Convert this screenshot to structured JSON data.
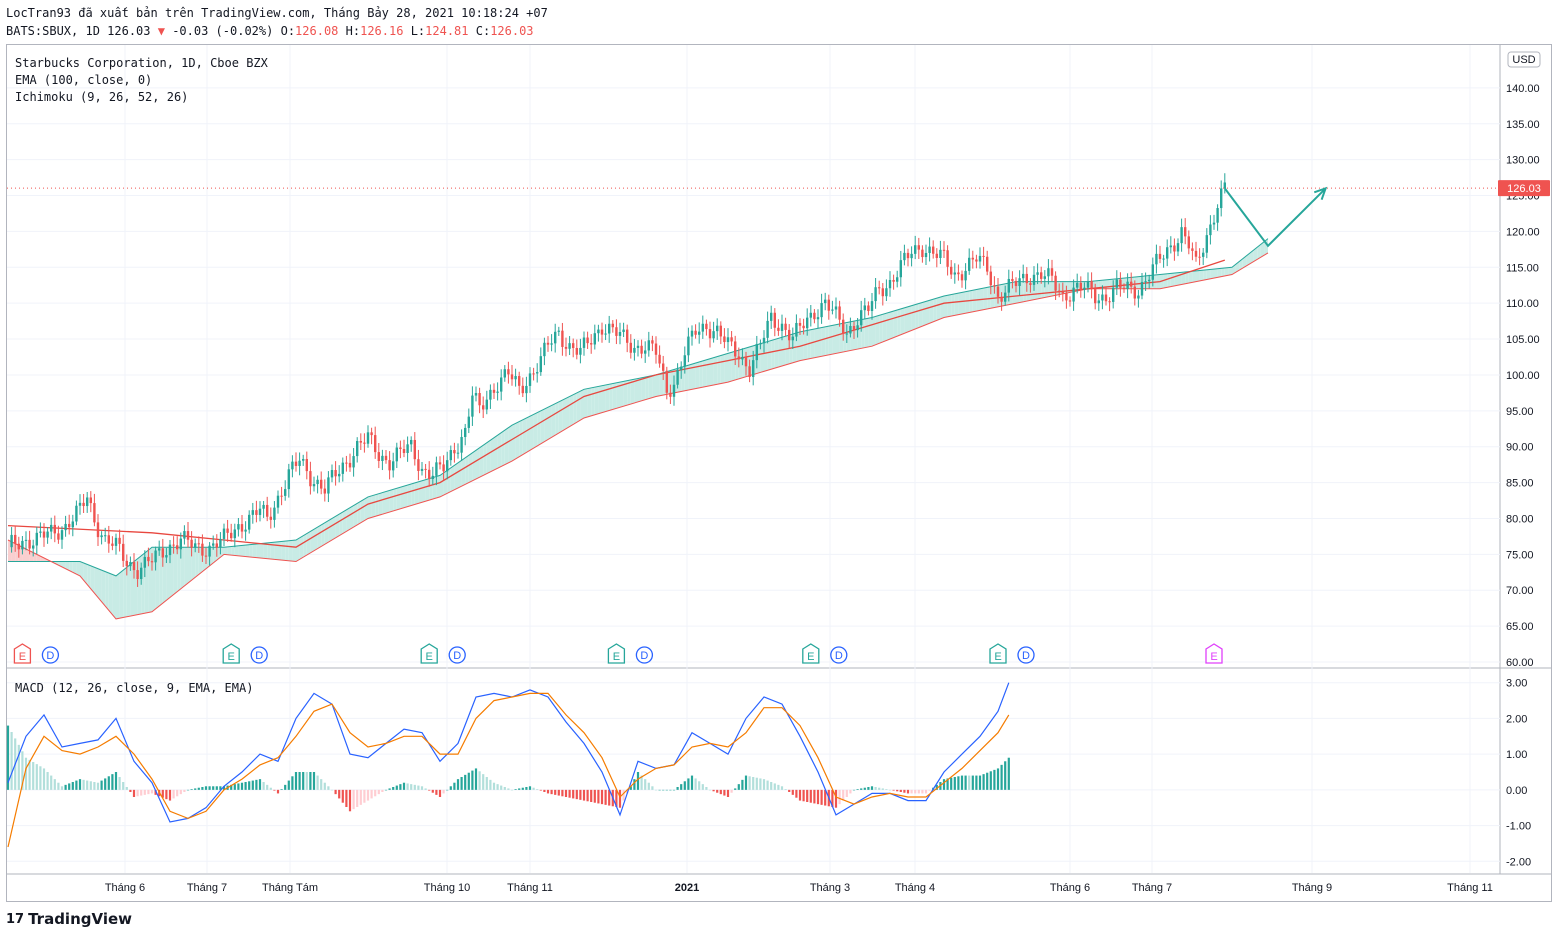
{
  "header": {
    "line1": "LocTran93 đã xuất bản trên TradingView.com, Tháng Bảy 28, 2021 10:18:24 +07",
    "symbol_info": "BATS:SBUX, 1D 126.03",
    "change": "-0.03 (-0.02%)",
    "o_label": "O:",
    "o_value": "126.08",
    "h_label": "H:",
    "h_value": "126.16",
    "l_label": "L:",
    "l_value": "124.81",
    "c_label": "C:",
    "c_value": "126.03"
  },
  "legend": {
    "title": "Starbucks Corporation, 1D, Cboe BZX",
    "ema": "EMA (100, close, 0)",
    "ichimoku": "Ichimoku (9, 26, 52, 26)",
    "macd": "MACD (12, 26, close, 9, EMA, EMA)"
  },
  "currency_label": "USD",
  "last_price_label": "126.03",
  "brand": "TradingView",
  "colors": {
    "up": "#26a69a",
    "down": "#ef5350",
    "ema": "#e8473f",
    "cloud_bull": "#c8ebe5",
    "cloud_bear": "#f9cfcf",
    "macd": "#2962ff",
    "signal": "#f57c00",
    "arrow": "#26a69a",
    "grid": "#f0f3fa",
    "axis_text": "#131722"
  },
  "chart_data": [
    {
      "type": "candlestick",
      "title": "Starbucks Corporation, 1D, Cboe BZX",
      "ylim": [
        60,
        145
      ],
      "y_ticks": [
        "60.00",
        "65.00",
        "70.00",
        "75.00",
        "80.00",
        "85.00",
        "90.00",
        "95.00",
        "100.00",
        "105.00",
        "110.00",
        "115.00",
        "120.00",
        "125.00",
        "130.00",
        "135.00",
        "140.00"
      ],
      "x_ticks": [
        "Tháng 6",
        "Tháng 7",
        "Tháng Tám",
        "Tháng 10",
        "Tháng 11",
        "2021",
        "Tháng 3",
        "Tháng 4",
        "Tháng 6",
        "Tháng 7",
        "Tháng 9",
        "Tháng 11"
      ],
      "close_path": [
        [
          0,
          76
        ],
        [
          4,
          77
        ],
        [
          8,
          77
        ],
        [
          12,
          78
        ],
        [
          16,
          79
        ],
        [
          20,
          81
        ],
        [
          22,
          83
        ],
        [
          24,
          80
        ],
        [
          27,
          77
        ],
        [
          30,
          76
        ],
        [
          33,
          74
        ],
        [
          36,
          73
        ],
        [
          40,
          74
        ],
        [
          44,
          76
        ],
        [
          48,
          77
        ],
        [
          52,
          76
        ],
        [
          56,
          76
        ],
        [
          60,
          77
        ],
        [
          64,
          79
        ],
        [
          67,
          80
        ],
        [
          70,
          81
        ],
        [
          72,
          80
        ],
        [
          75,
          83
        ],
        [
          78,
          86
        ],
        [
          81,
          88
        ],
        [
          84,
          86
        ],
        [
          86,
          85
        ],
        [
          88,
          84
        ],
        [
          91,
          86
        ],
        [
          94,
          88
        ],
        [
          97,
          90
        ],
        [
          100,
          91
        ],
        [
          103,
          89
        ],
        [
          106,
          88
        ],
        [
          109,
          89
        ],
        [
          112,
          90
        ],
        [
          115,
          87
        ],
        [
          118,
          86
        ],
        [
          121,
          87
        ],
        [
          124,
          90
        ],
        [
          127,
          92
        ],
        [
          129,
          97
        ],
        [
          131,
          95
        ],
        [
          133,
          97
        ],
        [
          136,
          99
        ],
        [
          139,
          100
        ],
        [
          142,
          98
        ],
        [
          145,
          100
        ],
        [
          148,
          102
        ],
        [
          150,
          104
        ],
        [
          153,
          106
        ],
        [
          156,
          104
        ],
        [
          159,
          103
        ],
        [
          162,
          105
        ],
        [
          165,
          107
        ],
        [
          168,
          106
        ],
        [
          171,
          105
        ],
        [
          174,
          104
        ],
        [
          177,
          104
        ],
        [
          180,
          103
        ],
        [
          183,
          98
        ],
        [
          185,
          99
        ],
        [
          188,
          103
        ],
        [
          191,
          106
        ],
        [
          194,
          107
        ],
        [
          197,
          106
        ],
        [
          200,
          104
        ],
        [
          203,
          103
        ],
        [
          206,
          101
        ],
        [
          209,
          104
        ],
        [
          212,
          108
        ],
        [
          215,
          107
        ],
        [
          218,
          105
        ],
        [
          221,
          107
        ],
        [
          224,
          109
        ],
        [
          227,
          110
        ],
        [
          230,
          108
        ],
        [
          233,
          106
        ],
        [
          236,
          108
        ],
        [
          239,
          109
        ],
        [
          242,
          112
        ],
        [
          245,
          113
        ],
        [
          248,
          115
        ],
        [
          251,
          117
        ],
        [
          254,
          118
        ],
        [
          257,
          117
        ],
        [
          260,
          116
        ],
        [
          263,
          114
        ],
        [
          266,
          115
        ],
        [
          269,
          116
        ],
        [
          272,
          115
        ],
        [
          275,
          111
        ],
        [
          278,
          112
        ],
        [
          281,
          113
        ],
        [
          284,
          114
        ],
        [
          287,
          114
        ],
        [
          290,
          113
        ],
        [
          293,
          111
        ],
        [
          296,
          112
        ],
        [
          299,
          112
        ],
        [
          302,
          111
        ],
        [
          305,
          111
        ],
        [
          308,
          112
        ],
        [
          311,
          112
        ],
        [
          314,
          112
        ],
        [
          317,
          114
        ],
        [
          320,
          116
        ],
        [
          323,
          118
        ],
        [
          326,
          120
        ],
        [
          328,
          118
        ],
        [
          330,
          115
        ],
        [
          332,
          118
        ],
        [
          334,
          121
        ],
        [
          336,
          124
        ],
        [
          338,
          126
        ]
      ],
      "ema_100": [
        [
          0,
          79
        ],
        [
          40,
          78
        ],
        [
          60,
          77
        ],
        [
          80,
          76
        ],
        [
          100,
          82
        ],
        [
          120,
          85
        ],
        [
          140,
          91
        ],
        [
          160,
          97
        ],
        [
          180,
          100
        ],
        [
          200,
          102
        ],
        [
          220,
          104
        ],
        [
          240,
          107
        ],
        [
          260,
          110
        ],
        [
          280,
          111
        ],
        [
          300,
          112
        ],
        [
          320,
          113
        ],
        [
          338,
          116
        ]
      ],
      "ichimoku_span_a": [
        [
          0,
          74
        ],
        [
          20,
          74
        ],
        [
          30,
          72
        ],
        [
          40,
          76
        ],
        [
          60,
          76
        ],
        [
          80,
          77
        ],
        [
          100,
          83
        ],
        [
          120,
          86
        ],
        [
          140,
          93
        ],
        [
          160,
          98
        ],
        [
          180,
          100
        ],
        [
          200,
          103
        ],
        [
          220,
          106
        ],
        [
          240,
          108
        ],
        [
          260,
          111
        ],
        [
          280,
          113
        ],
        [
          300,
          113
        ],
        [
          320,
          114
        ],
        [
          340,
          115
        ],
        [
          350,
          119
        ]
      ],
      "ichimoku_span_b": [
        [
          0,
          77
        ],
        [
          20,
          72
        ],
        [
          30,
          66
        ],
        [
          40,
          67
        ],
        [
          60,
          75
        ],
        [
          80,
          74
        ],
        [
          100,
          80
        ],
        [
          120,
          83
        ],
        [
          140,
          88
        ],
        [
          160,
          94
        ],
        [
          180,
          97
        ],
        [
          200,
          99
        ],
        [
          220,
          102
        ],
        [
          240,
          104
        ],
        [
          260,
          108
        ],
        [
          280,
          110
        ],
        [
          300,
          112
        ],
        [
          320,
          112
        ],
        [
          340,
          114
        ],
        [
          350,
          117
        ]
      ],
      "projection": [
        [
          338,
          126
        ],
        [
          350,
          118
        ],
        [
          366,
          126
        ]
      ],
      "last_price": 126.03,
      "events": [
        {
          "x": 4,
          "labels": [
            "E",
            "D"
          ]
        },
        {
          "x": 62,
          "labels": [
            "E",
            "D"
          ]
        },
        {
          "x": 117,
          "labels": [
            "E",
            "D"
          ]
        },
        {
          "x": 169,
          "labels": [
            "E",
            "D"
          ]
        },
        {
          "x": 223,
          "labels": [
            "E",
            "D"
          ]
        },
        {
          "x": 275,
          "labels": [
            "E",
            "D"
          ]
        },
        {
          "x": 335,
          "labels": [
            "E"
          ]
        }
      ]
    },
    {
      "type": "macd",
      "title": "MACD (12, 26, close, 9, EMA, EMA)",
      "ylim": [
        -2.3,
        3.3
      ],
      "y_ticks": [
        "3.00",
        "2.00",
        "1.00",
        "0.00",
        "-1.00",
        "-2.00"
      ],
      "macd_line": [
        [
          0,
          0.2
        ],
        [
          5,
          1.5
        ],
        [
          10,
          2.1
        ],
        [
          15,
          1.2
        ],
        [
          20,
          1.3
        ],
        [
          25,
          1.4
        ],
        [
          30,
          2.0
        ],
        [
          35,
          0.8
        ],
        [
          40,
          0.2
        ],
        [
          45,
          -0.9
        ],
        [
          50,
          -0.8
        ],
        [
          55,
          -0.5
        ],
        [
          60,
          0.1
        ],
        [
          65,
          0.5
        ],
        [
          70,
          1.0
        ],
        [
          75,
          0.8
        ],
        [
          80,
          2.0
        ],
        [
          85,
          2.7
        ],
        [
          90,
          2.4
        ],
        [
          95,
          1.0
        ],
        [
          100,
          0.9
        ],
        [
          105,
          1.3
        ],
        [
          110,
          1.7
        ],
        [
          115,
          1.6
        ],
        [
          120,
          0.8
        ],
        [
          125,
          1.3
        ],
        [
          130,
          2.6
        ],
        [
          135,
          2.7
        ],
        [
          140,
          2.6
        ],
        [
          145,
          2.8
        ],
        [
          150,
          2.6
        ],
        [
          155,
          1.9
        ],
        [
          160,
          1.3
        ],
        [
          165,
          0.5
        ],
        [
          170,
          -0.7
        ],
        [
          175,
          0.8
        ],
        [
          180,
          0.6
        ],
        [
          185,
          0.7
        ],
        [
          190,
          1.6
        ],
        [
          195,
          1.3
        ],
        [
          200,
          1.0
        ],
        [
          205,
          2.0
        ],
        [
          210,
          2.6
        ],
        [
          215,
          2.4
        ],
        [
          220,
          1.5
        ],
        [
          225,
          0.5
        ],
        [
          230,
          -0.7
        ],
        [
          235,
          -0.4
        ],
        [
          240,
          -0.1
        ],
        [
          245,
          -0.1
        ],
        [
          250,
          -0.3
        ],
        [
          255,
          -0.3
        ],
        [
          260,
          0.5
        ],
        [
          265,
          1.0
        ],
        [
          270,
          1.5
        ],
        [
          275,
          2.2
        ],
        [
          278,
          3.0
        ]
      ],
      "signal_line": [
        [
          0,
          -1.6
        ],
        [
          5,
          0.6
        ],
        [
          10,
          1.5
        ],
        [
          15,
          1.1
        ],
        [
          20,
          1.0
        ],
        [
          25,
          1.2
        ],
        [
          30,
          1.5
        ],
        [
          35,
          1.0
        ],
        [
          40,
          0.3
        ],
        [
          45,
          -0.6
        ],
        [
          50,
          -0.8
        ],
        [
          55,
          -0.6
        ],
        [
          60,
          0.0
        ],
        [
          65,
          0.3
        ],
        [
          70,
          0.7
        ],
        [
          75,
          0.9
        ],
        [
          80,
          1.5
        ],
        [
          85,
          2.2
        ],
        [
          90,
          2.4
        ],
        [
          95,
          1.6
        ],
        [
          100,
          1.2
        ],
        [
          105,
          1.3
        ],
        [
          110,
          1.5
        ],
        [
          115,
          1.5
        ],
        [
          120,
          1.0
        ],
        [
          125,
          1.0
        ],
        [
          130,
          2.0
        ],
        [
          135,
          2.5
        ],
        [
          140,
          2.6
        ],
        [
          145,
          2.7
        ],
        [
          150,
          2.7
        ],
        [
          155,
          2.1
        ],
        [
          160,
          1.6
        ],
        [
          165,
          0.9
        ],
        [
          170,
          -0.2
        ],
        [
          175,
          0.3
        ],
        [
          180,
          0.6
        ],
        [
          185,
          0.7
        ],
        [
          190,
          1.2
        ],
        [
          195,
          1.3
        ],
        [
          200,
          1.2
        ],
        [
          205,
          1.6
        ],
        [
          210,
          2.3
        ],
        [
          215,
          2.3
        ],
        [
          220,
          1.8
        ],
        [
          225,
          0.9
        ],
        [
          230,
          -0.2
        ],
        [
          235,
          -0.4
        ],
        [
          240,
          -0.2
        ],
        [
          245,
          -0.1
        ],
        [
          250,
          -0.2
        ],
        [
          255,
          -0.2
        ],
        [
          260,
          0.2
        ],
        [
          265,
          0.6
        ],
        [
          270,
          1.1
        ],
        [
          275,
          1.6
        ],
        [
          278,
          2.1
        ]
      ]
    }
  ]
}
